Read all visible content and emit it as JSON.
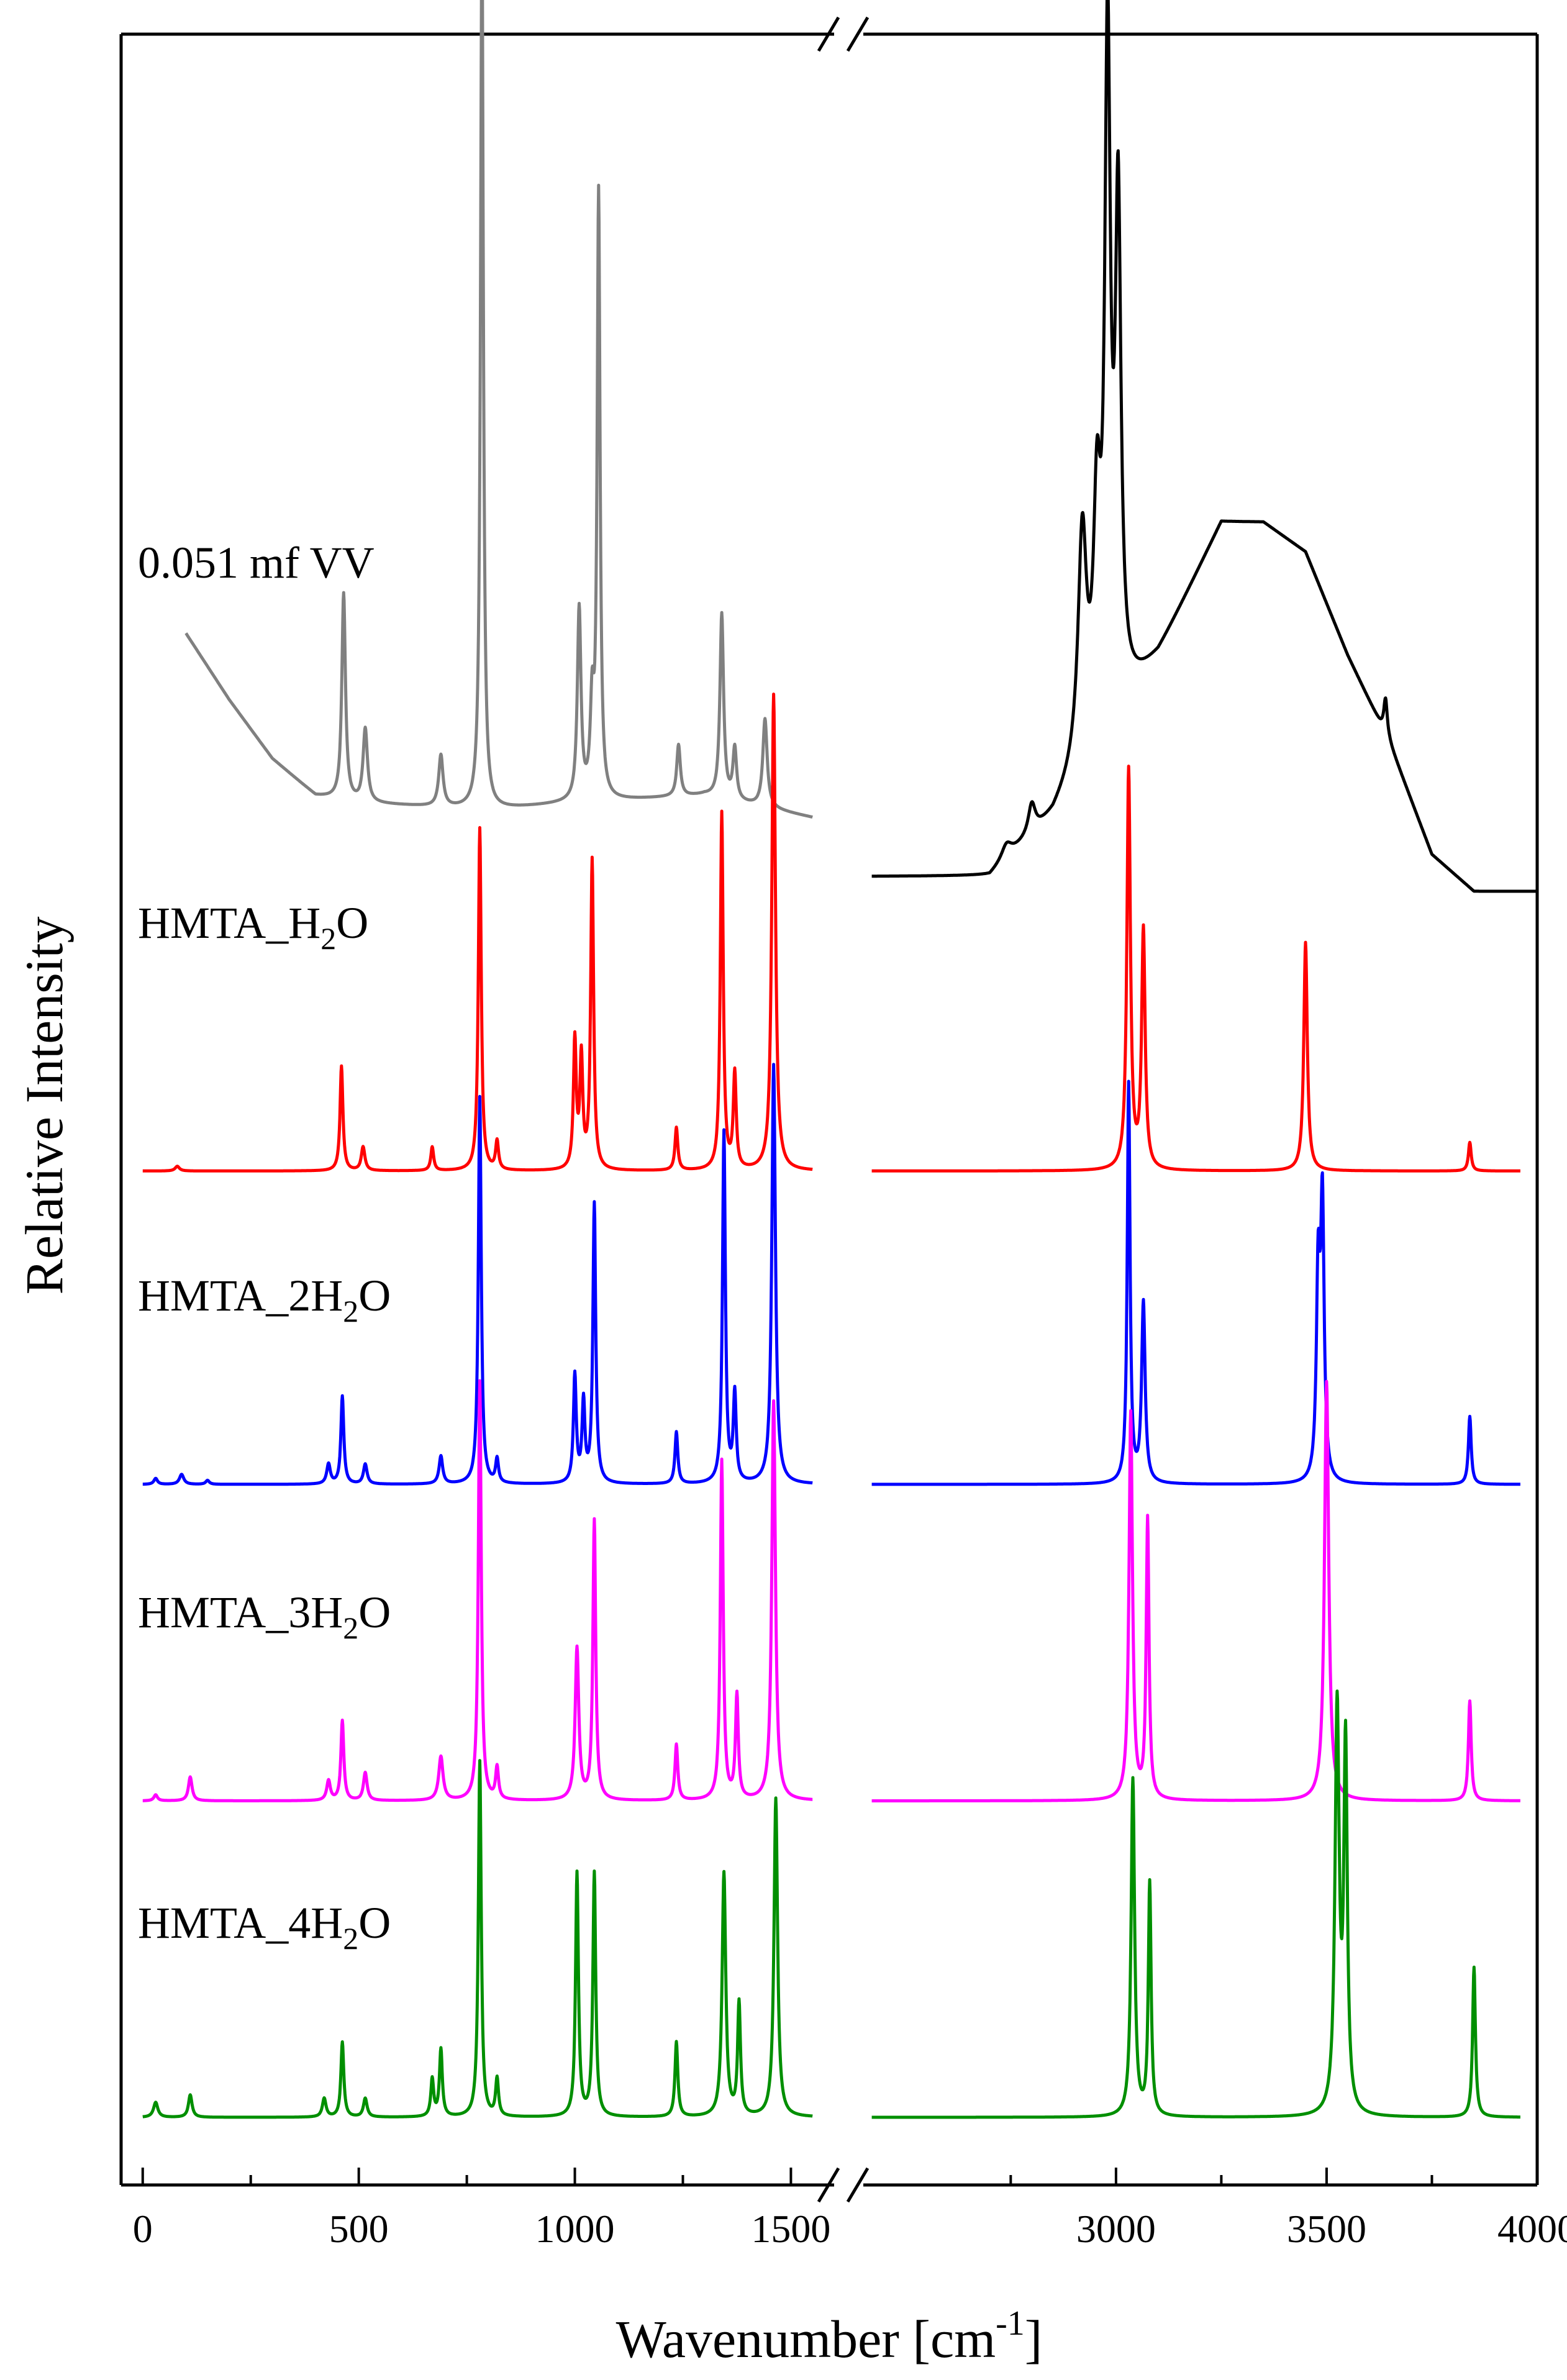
{
  "chart_data": {
    "type": "line",
    "xlabel": "Wavenumber [cm",
    "xlabel_sup": "-1",
    "xlabel_end": "]",
    "ylabel": "Relative Intensity",
    "x_break": [
      1600,
      2400
    ],
    "x_ranges": [
      [
        -50,
        1600
      ],
      [
        2400,
        4000
      ]
    ],
    "x_ticks": [
      {
        "value": 0,
        "label": "0"
      },
      {
        "value": 500,
        "label": "500"
      },
      {
        "value": 1000,
        "label": "1000"
      },
      {
        "value": 1500,
        "label": "1500"
      },
      {
        "value": 3000,
        "label": "3000"
      },
      {
        "value": 3500,
        "label": "3500"
      },
      {
        "value": 4000,
        "label": "4000"
      }
    ],
    "ylim": [
      0,
      7
    ],
    "series": [
      {
        "name": "0.051 mf VV",
        "label_parts": [
          "0.051 mf VV"
        ],
        "color": "#808080",
        "color_high": "#000000",
        "baseline": 4.45,
        "scale": 2.4,
        "low_background": [
          [
            100,
            0.25
          ],
          [
            200,
            0.16
          ],
          [
            300,
            0.08
          ],
          [
            400,
            0.03
          ],
          [
            500,
            0.02
          ],
          [
            800,
            0.01
          ],
          [
            1000,
            0.02
          ],
          [
            1300,
            0.03
          ],
          [
            1550,
            0.0
          ]
        ],
        "high_background": [
          [
            2400,
            -0.08
          ],
          [
            2700,
            -0.08
          ],
          [
            2850,
            0.0
          ],
          [
            2950,
            0.1
          ],
          [
            3100,
            0.22
          ],
          [
            3250,
            0.4
          ],
          [
            3350,
            0.4
          ],
          [
            3450,
            0.36
          ],
          [
            3550,
            0.22
          ],
          [
            3650,
            0.1
          ],
          [
            3750,
            -0.05
          ],
          [
            3850,
            -0.1
          ],
          [
            4000,
            -0.1
          ]
        ],
        "peaks": [
          {
            "x": 465,
            "h": 0.28,
            "w": 5
          },
          {
            "x": 515,
            "h": 0.1,
            "w": 6
          },
          {
            "x": 690,
            "h": 0.07,
            "w": 6
          },
          {
            "x": 785,
            "h": 1.2,
            "w": 4
          },
          {
            "x": 1010,
            "h": 0.26,
            "w": 5
          },
          {
            "x": 1040,
            "h": 0.12,
            "w": 5
          },
          {
            "x": 1055,
            "h": 0.82,
            "w": 4
          },
          {
            "x": 1240,
            "h": 0.07,
            "w": 5
          },
          {
            "x": 1340,
            "h": 0.25,
            "w": 5
          },
          {
            "x": 1370,
            "h": 0.07,
            "w": 5
          },
          {
            "x": 1440,
            "h": 0.12,
            "w": 6
          },
          {
            "x": 2740,
            "h": 0.02,
            "w": 15
          },
          {
            "x": 2800,
            "h": 0.04,
            "w": 10
          },
          {
            "x": 2920,
            "h": 0.3,
            "w": 12
          },
          {
            "x": 2955,
            "h": 0.28,
            "w": 10
          },
          {
            "x": 2980,
            "h": 0.9,
            "w": 8
          },
          {
            "x": 3005,
            "h": 0.66,
            "w": 8
          },
          {
            "x": 3640,
            "h": 0.05,
            "w": 5
          }
        ]
      },
      {
        "name": "HMTA_H2O",
        "label_parts": [
          "HMTA_H",
          "2",
          "O"
        ],
        "color": "#ff0000",
        "baseline": 3.3,
        "scale": 1.55,
        "peaks": [
          {
            "x": 80,
            "h": 0.01,
            "w": 6
          },
          {
            "x": 460,
            "h": 0.22,
            "w": 4
          },
          {
            "x": 510,
            "h": 0.05,
            "w": 5
          },
          {
            "x": 670,
            "h": 0.05,
            "w": 4
          },
          {
            "x": 780,
            "h": 0.72,
            "w": 4
          },
          {
            "x": 820,
            "h": 0.06,
            "w": 4
          },
          {
            "x": 1000,
            "h": 0.27,
            "w": 4
          },
          {
            "x": 1015,
            "h": 0.23,
            "w": 4
          },
          {
            "x": 1040,
            "h": 0.65,
            "w": 4
          },
          {
            "x": 1235,
            "h": 0.09,
            "w": 4
          },
          {
            "x": 1340,
            "h": 0.75,
            "w": 4
          },
          {
            "x": 1370,
            "h": 0.2,
            "w": 4
          },
          {
            "x": 1460,
            "h": 1.0,
            "w": 5
          },
          {
            "x": 3030,
            "h": 0.84,
            "w": 5
          },
          {
            "x": 3065,
            "h": 0.5,
            "w": 5
          },
          {
            "x": 3450,
            "h": 0.48,
            "w": 5
          },
          {
            "x": 3840,
            "h": 0.06,
            "w": 4
          }
        ]
      },
      {
        "name": "HMTA_2H2O",
        "label_parts": [
          "HMTA_2H",
          "2",
          "O"
        ],
        "color": "#0000ff",
        "baseline": 2.28,
        "scale": 1.3,
        "peaks": [
          {
            "x": 30,
            "h": 0.015,
            "w": 5
          },
          {
            "x": 90,
            "h": 0.025,
            "w": 6
          },
          {
            "x": 150,
            "h": 0.01,
            "w": 5
          },
          {
            "x": 430,
            "h": 0.05,
            "w": 5
          },
          {
            "x": 462,
            "h": 0.22,
            "w": 4
          },
          {
            "x": 515,
            "h": 0.05,
            "w": 5
          },
          {
            "x": 690,
            "h": 0.07,
            "w": 5
          },
          {
            "x": 780,
            "h": 0.97,
            "w": 4
          },
          {
            "x": 820,
            "h": 0.06,
            "w": 4
          },
          {
            "x": 1000,
            "h": 0.27,
            "w": 4
          },
          {
            "x": 1020,
            "h": 0.2,
            "w": 4
          },
          {
            "x": 1045,
            "h": 0.7,
            "w": 4
          },
          {
            "x": 1235,
            "h": 0.13,
            "w": 4
          },
          {
            "x": 1345,
            "h": 0.88,
            "w": 4
          },
          {
            "x": 1370,
            "h": 0.22,
            "w": 4
          },
          {
            "x": 1460,
            "h": 1.05,
            "w": 5
          },
          {
            "x": 3030,
            "h": 1.0,
            "w": 4
          },
          {
            "x": 3065,
            "h": 0.45,
            "w": 5
          },
          {
            "x": 3480,
            "h": 0.5,
            "w": 5
          },
          {
            "x": 3490,
            "h": 0.68,
            "w": 5
          },
          {
            "x": 3840,
            "h": 0.17,
            "w": 4
          }
        ]
      },
      {
        "name": "HMTA_3H2O",
        "label_parts": [
          "HMTA_3H",
          "2",
          "O"
        ],
        "color": "#ff00ff",
        "baseline": 1.25,
        "scale": 1.3,
        "peaks": [
          {
            "x": 30,
            "h": 0.015,
            "w": 5
          },
          {
            "x": 110,
            "h": 0.06,
            "w": 5
          },
          {
            "x": 430,
            "h": 0.05,
            "w": 5
          },
          {
            "x": 462,
            "h": 0.2,
            "w": 4
          },
          {
            "x": 515,
            "h": 0.07,
            "w": 5
          },
          {
            "x": 690,
            "h": 0.11,
            "w": 6
          },
          {
            "x": 780,
            "h": 1.05,
            "w": 4
          },
          {
            "x": 820,
            "h": 0.08,
            "w": 4
          },
          {
            "x": 1005,
            "h": 0.38,
            "w": 5
          },
          {
            "x": 1045,
            "h": 0.7,
            "w": 4
          },
          {
            "x": 1235,
            "h": 0.14,
            "w": 4
          },
          {
            "x": 1340,
            "h": 0.85,
            "w": 4
          },
          {
            "x": 1375,
            "h": 0.26,
            "w": 4
          },
          {
            "x": 1460,
            "h": 1.0,
            "w": 5
          },
          {
            "x": 3035,
            "h": 0.97,
            "w": 5
          },
          {
            "x": 3075,
            "h": 0.7,
            "w": 4
          },
          {
            "x": 3500,
            "h": 1.05,
            "w": 6
          },
          {
            "x": 3840,
            "h": 0.25,
            "w": 4
          }
        ]
      },
      {
        "name": "HMTA_4H2O",
        "label_parts": [
          "HMTA_4H",
          "2",
          "O"
        ],
        "color": "#008f00",
        "baseline": 0.22,
        "scale": 1.22,
        "peaks": [
          {
            "x": 30,
            "h": 0.04,
            "w": 6
          },
          {
            "x": 110,
            "h": 0.06,
            "w": 5
          },
          {
            "x": 420,
            "h": 0.05,
            "w": 5
          },
          {
            "x": 462,
            "h": 0.2,
            "w": 4
          },
          {
            "x": 515,
            "h": 0.05,
            "w": 5
          },
          {
            "x": 670,
            "h": 0.1,
            "w": 4
          },
          {
            "x": 690,
            "h": 0.18,
            "w": 4
          },
          {
            "x": 780,
            "h": 0.95,
            "w": 4
          },
          {
            "x": 820,
            "h": 0.1,
            "w": 4
          },
          {
            "x": 1005,
            "h": 0.65,
            "w": 4
          },
          {
            "x": 1045,
            "h": 0.65,
            "w": 4
          },
          {
            "x": 1235,
            "h": 0.2,
            "w": 4
          },
          {
            "x": 1345,
            "h": 0.65,
            "w": 5
          },
          {
            "x": 1380,
            "h": 0.3,
            "w": 4
          },
          {
            "x": 1465,
            "h": 0.85,
            "w": 5
          },
          {
            "x": 3040,
            "h": 0.9,
            "w": 5
          },
          {
            "x": 3080,
            "h": 0.62,
            "w": 4
          },
          {
            "x": 3525,
            "h": 1.08,
            "w": 6
          },
          {
            "x": 3545,
            "h": 0.97,
            "w": 5
          },
          {
            "x": 3850,
            "h": 0.4,
            "w": 4
          }
        ]
      }
    ]
  }
}
